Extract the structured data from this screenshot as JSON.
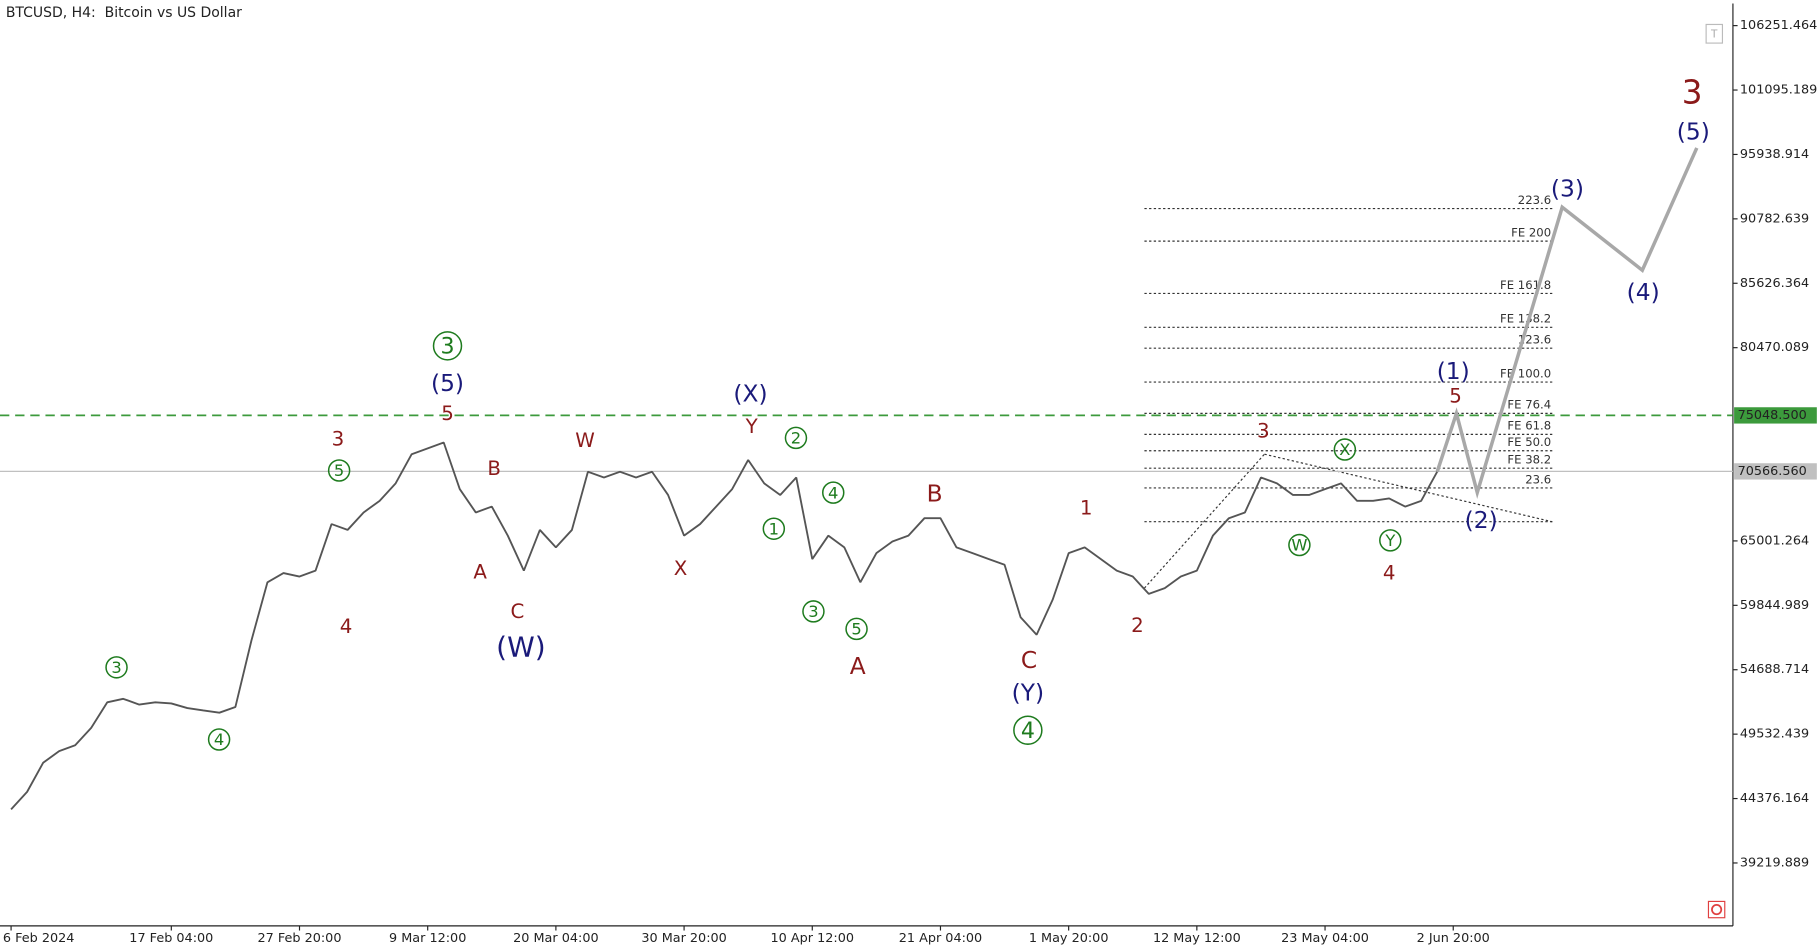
{
  "chart_data": {
    "type": "price-line",
    "title": "BTCUSD, H4:  Bitcoin vs US Dollar",
    "categories": [
      "6 Feb 2024",
      null,
      null,
      null,
      null,
      null,
      null,
      null,
      null,
      null,
      "17 Feb 04:00",
      null,
      null,
      null,
      null,
      null,
      null,
      null,
      "27 Feb 20:00",
      null,
      null,
      null,
      null,
      null,
      null,
      null,
      "9 Mar 12:00",
      null,
      null,
      null,
      null,
      null,
      null,
      null,
      "20 Mar 04:00",
      null,
      null,
      null,
      null,
      null,
      null,
      null,
      "30 Mar 20:00",
      null,
      null,
      null,
      null,
      null,
      null,
      null,
      "10 Apr 12:00",
      null,
      null,
      null,
      null,
      null,
      null,
      null,
      "21 Apr 04:00",
      null,
      null,
      null,
      null,
      null,
      null,
      null,
      "1 May 20:00",
      null,
      null,
      null,
      null,
      null,
      null,
      null,
      "12 May 12:00",
      null,
      null,
      null,
      null,
      null,
      null,
      null,
      "23 May 04:00",
      null,
      null,
      null,
      null,
      null,
      null,
      null,
      "2 Jun 20:00"
    ],
    "values": [
      43510,
      44910,
      47240,
      48170,
      48640,
      50030,
      52080,
      52360,
      51900,
      52080,
      51990,
      51620,
      51430,
      51250,
      51710,
      57030,
      61690,
      62430,
      62150,
      62620,
      66350,
      65880,
      67280,
      68210,
      69610,
      71940,
      72410,
      72880,
      69150,
      67280,
      67750,
      65420,
      62620,
      65880,
      64480,
      65880,
      70540,
      70080,
      70540,
      70080,
      70540,
      68680,
      65420,
      66350,
      67750,
      69150,
      71480,
      69610,
      68680,
      70080,
      63550,
      65420,
      64480,
      61690,
      64020,
      64950,
      65420,
      66820,
      66820,
      64480,
      64020,
      63550,
      63090,
      58890,
      57490,
      60290,
      64020,
      64480,
      63550,
      62620,
      62150,
      60760,
      61220,
      62150,
      62620,
      65420,
      66820,
      67280,
      70080,
      69610,
      68680,
      68680,
      69150,
      69610,
      68210,
      68210,
      68400,
      67750,
      68210,
      70540,
      null
    ],
    "color": "#555555",
    "projection": {
      "x": [
        89,
        90.2,
        91.5,
        96.8,
        101.8,
        105.2
      ],
      "values": [
        70540,
        75210,
        68870,
        91710,
        86670,
        96460
      ],
      "color": "#a8a8a8"
    },
    "ylim": [
      34184,
      108023
    ],
    "yticks": [
      106251.464,
      101095.189,
      95938.914,
      90782.639,
      85626.364,
      80470.089,
      65001.264,
      59844.989,
      54688.714,
      49532.439,
      44376.164,
      39219.889
    ],
    "hlines": [
      {
        "value": 75048.5,
        "label": "75048.500",
        "color": "#3c9a3c",
        "dashed": true
      },
      {
        "value": 70566.56,
        "label": "70566.560",
        "color": "#c0c0c0",
        "dashed": false
      }
    ],
    "fib_levels": [
      {
        "label": "223.6",
        "value": 91610
      },
      {
        "label": "FE 200",
        "value": 89000
      },
      {
        "label": "FE 161.8",
        "value": 84810
      },
      {
        "label": "FE 138.2",
        "value": 82100
      },
      {
        "label": "123.6",
        "value": 80430
      },
      {
        "label": "FE 100.0",
        "value": 77720
      },
      {
        "label": "FE 76.4",
        "value": 75210
      },
      {
        "label": "FE 61.8",
        "value": 73530
      },
      {
        "label": "FE 50.0",
        "value": 72220
      },
      {
        "label": "FE 38.2",
        "value": 70820
      },
      {
        "label": "23.6",
        "value": 69240
      },
      {
        "value": 66540
      }
    ],
    "annotations": [
      {
        "text": "3",
        "color": "#1e7b1e",
        "circled": true
      },
      {
        "text": "4",
        "color": "#1e7b1e",
        "circled": true
      },
      {
        "text": "3",
        "color": "#8b1a1a"
      },
      {
        "text": "5",
        "color": "#1e7b1e",
        "circled": true
      },
      {
        "text": "4",
        "color": "#8b1a1a"
      },
      {
        "text": "3",
        "color": "#1e7b1e",
        "circled": true
      },
      {
        "text": "(5)",
        "color": "#1a1a7a"
      },
      {
        "text": "5",
        "color": "#8b1a1a"
      },
      {
        "text": "B",
        "color": "#8b1a1a"
      },
      {
        "text": "A",
        "color": "#8b1a1a"
      },
      {
        "text": "C",
        "color": "#8b1a1a"
      },
      {
        "text": "(W)",
        "color": "#1a1a7a"
      },
      {
        "text": "W",
        "color": "#8b1a1a"
      },
      {
        "text": "X",
        "color": "#8b1a1a"
      },
      {
        "text": "(X)",
        "color": "#1a1a7a"
      },
      {
        "text": "Y",
        "color": "#8b1a1a"
      },
      {
        "text": "2",
        "color": "#1e7b1e",
        "circled": true
      },
      {
        "text": "1",
        "color": "#1e7b1e",
        "circled": true
      },
      {
        "text": "4",
        "color": "#1e7b1e",
        "circled": true
      },
      {
        "text": "3",
        "color": "#1e7b1e",
        "circled": true
      },
      {
        "text": "5",
        "color": "#1e7b1e",
        "circled": true
      },
      {
        "text": "A",
        "color": "#8b1a1a"
      },
      {
        "text": "B",
        "color": "#8b1a1a"
      },
      {
        "text": "C",
        "color": "#8b1a1a"
      },
      {
        "text": "(Y)",
        "color": "#1a1a7a"
      },
      {
        "text": "4",
        "color": "#1e7b1e",
        "circled": true
      },
      {
        "text": "1",
        "color": "#8b1a1a"
      },
      {
        "text": "2",
        "color": "#8b1a1a"
      },
      {
        "text": "3",
        "color": "#8b1a1a"
      },
      {
        "text": "X",
        "color": "#1e7b1e",
        "circled": true
      },
      {
        "text": "W",
        "color": "#1e7b1e",
        "circled": true
      },
      {
        "text": "Y",
        "color": "#1e7b1e",
        "circled": true
      },
      {
        "text": "4",
        "color": "#8b1a1a"
      },
      {
        "text": "(1)",
        "color": "#1a1a7a"
      },
      {
        "text": "5",
        "color": "#8b1a1a"
      },
      {
        "text": "(2)",
        "color": "#1a1a7a"
      },
      {
        "text": "(3)",
        "color": "#1a1a7a"
      },
      {
        "text": "(4)",
        "color": "#1a1a7a"
      },
      {
        "text": "(5)",
        "color": "#1a1a7a"
      },
      {
        "text": "3",
        "color": "#8b1a1a"
      }
    ]
  }
}
